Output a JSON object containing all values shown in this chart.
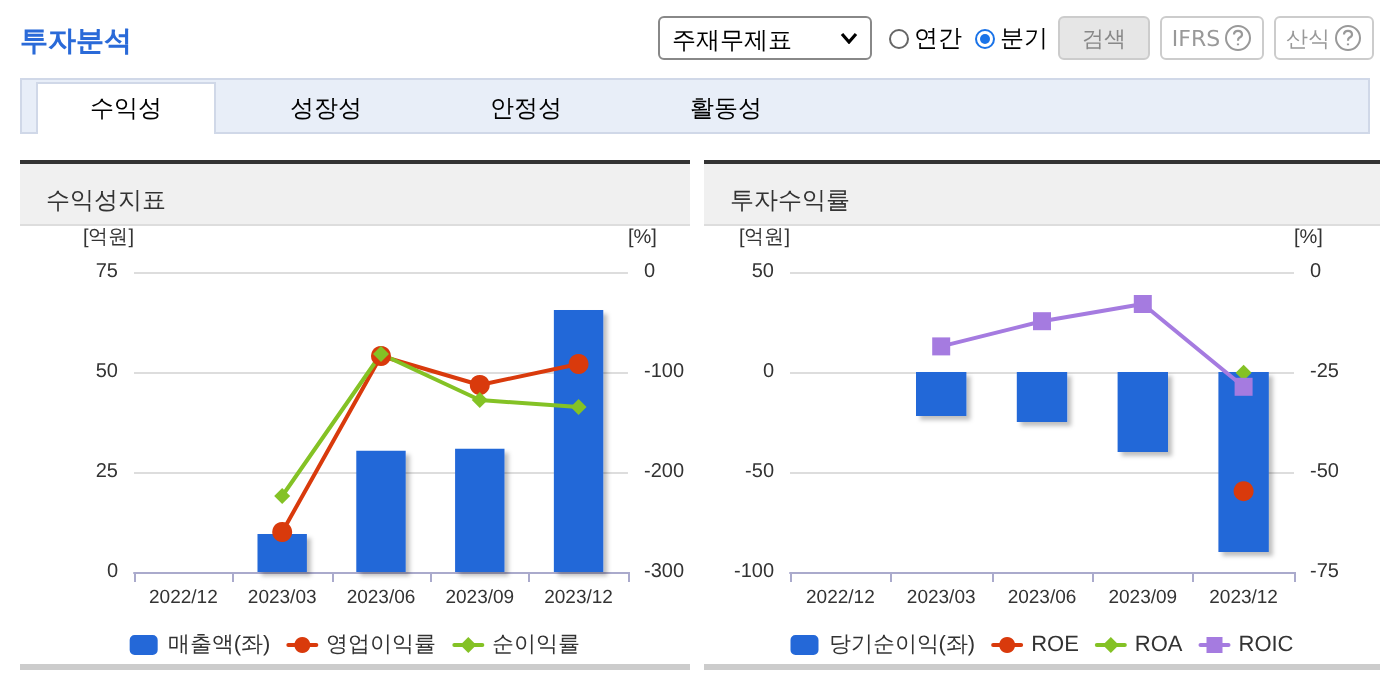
{
  "chart_data": [
    {
      "type": "other",
      "title": "투자분석",
      "annotations": [
        "주재무제표",
        "연간",
        "분기",
        "검색",
        "IFRS",
        "산식",
        "수익성",
        "성장성",
        "안정성",
        "활동성"
      ]
    },
    {
      "type": "bar",
      "title": "수익성지표",
      "ylabel": "[억원]",
      "y2label": "[%]",
      "categories": [
        "2022/12",
        "2023/03",
        "2023/06",
        "2023/09",
        "2023/12"
      ],
      "series": [
        {
          "name": "매출액(좌)",
          "type": "bar",
          "color": "#2468d8",
          "values": [
            null,
            9.5,
            30.3,
            30.8,
            65.5
          ]
        },
        {
          "name": "영업이익률",
          "type": "line",
          "axis": "y2",
          "marker": "circle",
          "color": "#d93a0c",
          "values": [
            null,
            -260,
            -84,
            -113,
            -92
          ]
        },
        {
          "name": "순이익률",
          "type": "line",
          "axis": "y2",
          "marker": "diamond",
          "color": "#84c225",
          "values": [
            null,
            -224,
            -82,
            -128,
            -135
          ]
        }
      ],
      "ylim": [
        0,
        75
      ],
      "yticks": [
        0,
        25,
        50,
        75
      ],
      "y2lim": [
        -300,
        0
      ],
      "y2ticks": [
        0,
        -100,
        -200,
        -300
      ],
      "grid": "y",
      "legend": "bottom"
    },
    {
      "type": "bar",
      "title": "투자수익률",
      "ylabel": "[억원]",
      "y2label": "[%]",
      "categories": [
        "2022/12",
        "2023/03",
        "2023/06",
        "2023/09",
        "2023/12"
      ],
      "series": [
        {
          "name": "당기순이익(좌)",
          "type": "bar",
          "color": "#2468d8",
          "values": [
            null,
            -22,
            -25,
            -40,
            -90
          ]
        },
        {
          "name": "ROE",
          "type": "line",
          "axis": "y2",
          "marker": "circle",
          "color": "#d93a0c",
          "values": [
            null,
            null,
            null,
            null,
            -54.8
          ]
        },
        {
          "name": "ROA",
          "type": "line",
          "axis": "y2",
          "marker": "diamond",
          "color": "#84c225",
          "values": [
            null,
            null,
            null,
            null,
            -25.2
          ]
        },
        {
          "name": "ROIC",
          "type": "line",
          "axis": "y2",
          "marker": "square",
          "color": "#a57be0",
          "values": [
            null,
            -18.6,
            -12.3,
            -8,
            -28.7
          ]
        }
      ],
      "ylim": [
        -100,
        50
      ],
      "yticks": [
        50,
        0,
        -50,
        -100
      ],
      "y2lim": [
        -75,
        0
      ],
      "y2ticks": [
        0,
        -25,
        -50,
        -75
      ],
      "grid": "y",
      "legend": "bottom"
    }
  ]
}
